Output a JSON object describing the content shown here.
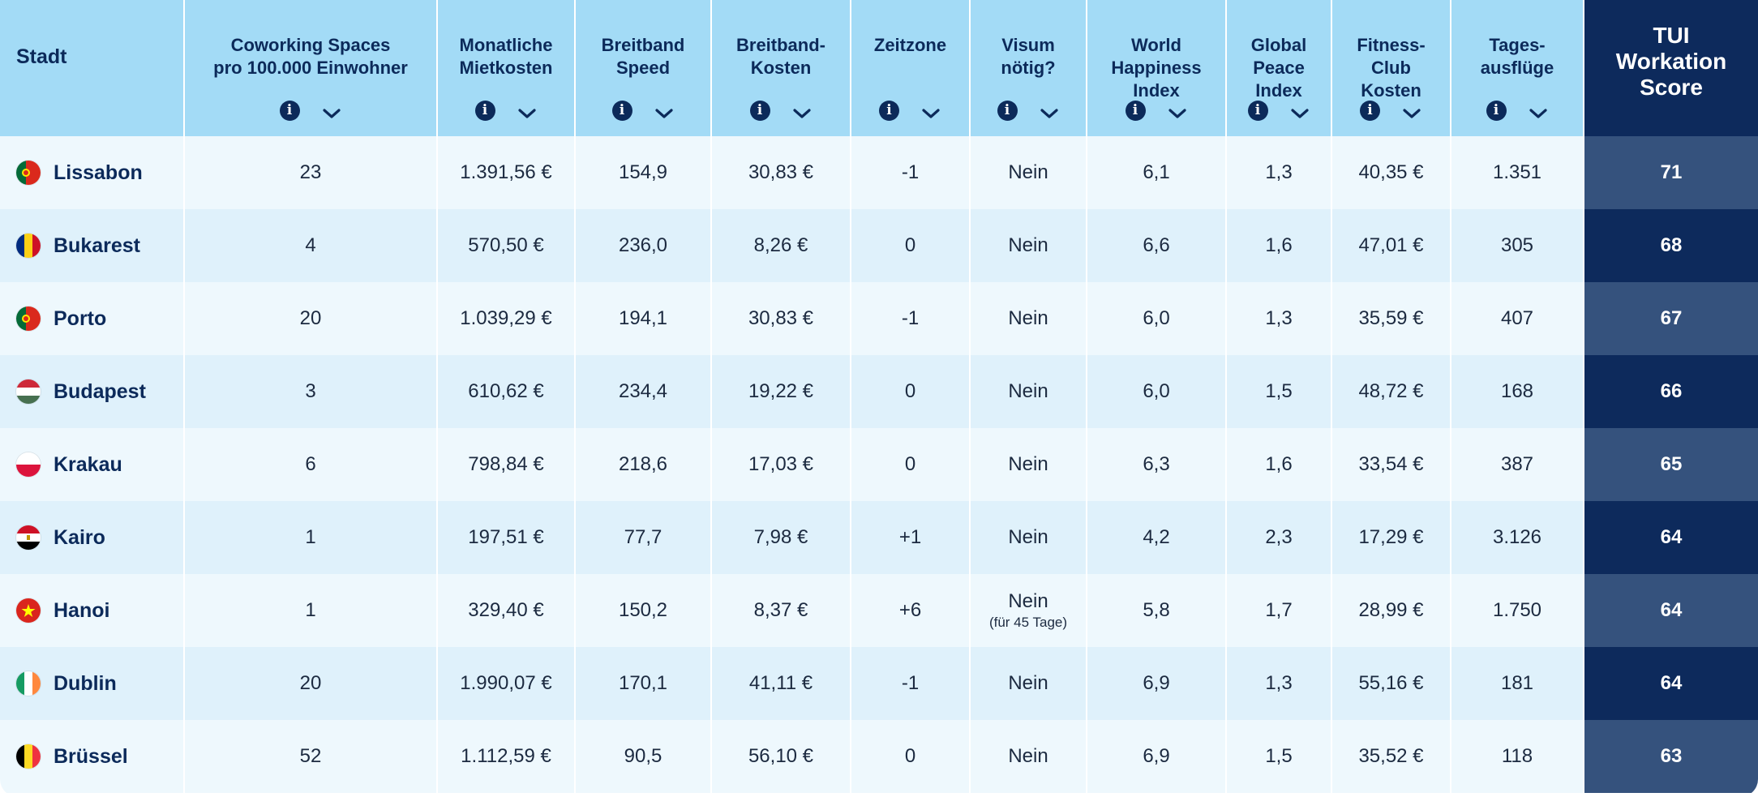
{
  "headers": [
    {
      "label": "Stadt",
      "controls": false
    },
    {
      "label": "Coworking Spaces\npro 100.000 Einwohner",
      "controls": true
    },
    {
      "label": "Monatliche\nMietkosten",
      "controls": true
    },
    {
      "label": "Breitband\nSpeed",
      "controls": true
    },
    {
      "label": "Breitband-\nKosten",
      "controls": true
    },
    {
      "label": "Zeitzone",
      "controls": true
    },
    {
      "label": "Visum\nnötig?",
      "controls": true
    },
    {
      "label": "World\nHappiness\nIndex",
      "controls": true
    },
    {
      "label": "Global\nPeace\nIndex",
      "controls": true
    },
    {
      "label": "Fitness-\nClub\nKosten",
      "controls": true
    },
    {
      "label": "Tages-\nausflüge",
      "controls": true
    },
    {
      "label": "TUI\nWorkation\nScore",
      "controls": false
    }
  ],
  "info_glyph": "i",
  "rows": [
    {
      "city": "Lissabon",
      "flag": "portugal",
      "coworking": "23",
      "rent": "1.391,56 €",
      "speed": "154,9",
      "bb_cost": "30,83 €",
      "tz": "-1",
      "visa": "Nein",
      "visa_note": "",
      "happiness": "6,1",
      "peace": "1,3",
      "fitness": "40,35 €",
      "trips": "1.351",
      "score": "71"
    },
    {
      "city": "Bukarest",
      "flag": "romania",
      "coworking": "4",
      "rent": "570,50 €",
      "speed": "236,0",
      "bb_cost": "8,26 €",
      "tz": "0",
      "visa": "Nein",
      "visa_note": "",
      "happiness": "6,6",
      "peace": "1,6",
      "fitness": "47,01 €",
      "trips": "305",
      "score": "68"
    },
    {
      "city": "Porto",
      "flag": "portugal",
      "coworking": "20",
      "rent": "1.039,29 €",
      "speed": "194,1",
      "bb_cost": "30,83 €",
      "tz": "-1",
      "visa": "Nein",
      "visa_note": "",
      "happiness": "6,0",
      "peace": "1,3",
      "fitness": "35,59 €",
      "trips": "407",
      "score": "67"
    },
    {
      "city": "Budapest",
      "flag": "hungary",
      "coworking": "3",
      "rent": "610,62 €",
      "speed": "234,4",
      "bb_cost": "19,22 €",
      "tz": "0",
      "visa": "Nein",
      "visa_note": "",
      "happiness": "6,0",
      "peace": "1,5",
      "fitness": "48,72 €",
      "trips": "168",
      "score": "66"
    },
    {
      "city": "Krakau",
      "flag": "poland",
      "coworking": "6",
      "rent": "798,84 €",
      "speed": "218,6",
      "bb_cost": "17,03 €",
      "tz": "0",
      "visa": "Nein",
      "visa_note": "",
      "happiness": "6,3",
      "peace": "1,6",
      "fitness": "33,54 €",
      "trips": "387",
      "score": "65"
    },
    {
      "city": "Kairo",
      "flag": "egypt",
      "coworking": "1",
      "rent": "197,51 €",
      "speed": "77,7",
      "bb_cost": "7,98 €",
      "tz": "+1",
      "visa": "Nein",
      "visa_note": "",
      "happiness": "4,2",
      "peace": "2,3",
      "fitness": "17,29 €",
      "trips": "3.126",
      "score": "64"
    },
    {
      "city": "Hanoi",
      "flag": "vietnam",
      "coworking": "1",
      "rent": "329,40 €",
      "speed": "150,2",
      "bb_cost": "8,37 €",
      "tz": "+6",
      "visa": "Nein",
      "visa_note": "(für 45 Tage)",
      "happiness": "5,8",
      "peace": "1,7",
      "fitness": "28,99 €",
      "trips": "1.750",
      "score": "64"
    },
    {
      "city": "Dublin",
      "flag": "ireland",
      "coworking": "20",
      "rent": "1.990,07 €",
      "speed": "170,1",
      "bb_cost": "41,11 €",
      "tz": "-1",
      "visa": "Nein",
      "visa_note": "",
      "happiness": "6,9",
      "peace": "1,3",
      "fitness": "55,16 €",
      "trips": "181",
      "score": "64"
    },
    {
      "city": "Brüssel",
      "flag": "belgium",
      "coworking": "52",
      "rent": "1.112,59 €",
      "speed": "90,5",
      "bb_cost": "56,10 €",
      "tz": "0",
      "visa": "Nein",
      "visa_note": "",
      "happiness": "6,9",
      "peace": "1,5",
      "fitness": "35,52 €",
      "trips": "118",
      "score": "63"
    }
  ],
  "colors": {
    "header_bg": "#a3dbf6",
    "header_text": "#0c2a5a",
    "score_header_bg": "#0d2a5c",
    "row_light": "#eef8fd",
    "row_alt": "#dff1fb",
    "score_light": "#35527d",
    "score_dark": "#0d2a5c"
  }
}
